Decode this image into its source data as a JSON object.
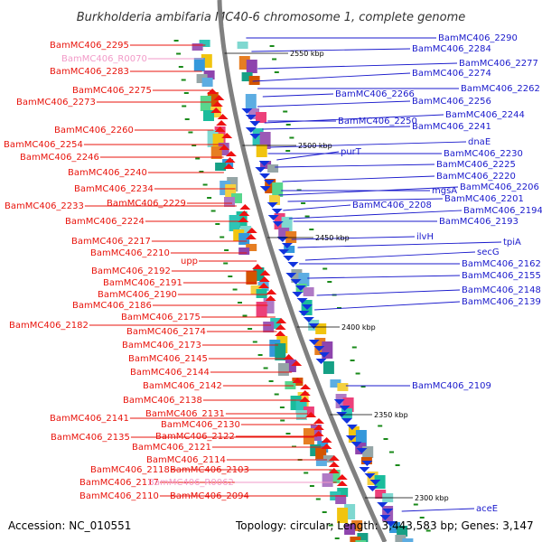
{
  "title": "Burkholderia ambifaria MC40-6 chromosome 1, complete genome",
  "accession": "Accession: NC_010551",
  "topology": "Topology: circular; Length: 3,443,583 bp; Genes: 3,147",
  "colors": {
    "left_label": "#e8140c",
    "right_label": "#1a1acc",
    "rna_label": "#f29ac8",
    "backbone": "#808080",
    "fwd_gene": "#ee1111",
    "rev_gene": "#1133dd",
    "tick": "#1a8a1a"
  },
  "kbp_markers": [
    {
      "text": "2550 kbp"
    },
    {
      "text": "2500 kbp"
    },
    {
      "text": "2450 kbp"
    },
    {
      "text": "2400 kbp"
    },
    {
      "text": "2350 kbp"
    },
    {
      "text": "2300 kbp"
    }
  ],
  "left_labels": [
    {
      "text": "BamMC406_2295",
      "rna": false
    },
    {
      "text": "BamMC406_R0070",
      "rna": true
    },
    {
      "text": "BamMC406_2283",
      "rna": false
    },
    {
      "text": "BamMC406_2275",
      "rna": false
    },
    {
      "text": "BamMC406_2273",
      "rna": false
    },
    {
      "text": "BamMC406_2260",
      "rna": false
    },
    {
      "text": "BamMC406_2254",
      "rna": false
    },
    {
      "text": "BamMC406_2246",
      "rna": false
    },
    {
      "text": "BamMC406_2240",
      "rna": false
    },
    {
      "text": "BamMC406_2234",
      "rna": false
    },
    {
      "text": "BamMC406_2233",
      "rna": false
    },
    {
      "text": "BamMC406_2229",
      "rna": false
    },
    {
      "text": "BamMC406_2224",
      "rna": false
    },
    {
      "text": "BamMC406_2217",
      "rna": false
    },
    {
      "text": "BamMC406_2210",
      "rna": false
    },
    {
      "text": "upp",
      "rna": false
    },
    {
      "text": "BamMC406_2192",
      "rna": false
    },
    {
      "text": "BamMC406_2191",
      "rna": false
    },
    {
      "text": "BamMC406_2190",
      "rna": false
    },
    {
      "text": "BamMC406_2186",
      "rna": false
    },
    {
      "text": "BamMC406_2182",
      "rna": false
    },
    {
      "text": "BamMC406_2175",
      "rna": false
    },
    {
      "text": "BamMC406_2174",
      "rna": false
    },
    {
      "text": "BamMC406_2173",
      "rna": false
    },
    {
      "text": "BamMC406_2145",
      "rna": false
    },
    {
      "text": "BamMC406_2144",
      "rna": false
    },
    {
      "text": "BamMC406_2142",
      "rna": false
    },
    {
      "text": "BamMC406_2138",
      "rna": false
    },
    {
      "text": "BamMC406_2131",
      "rna": false
    },
    {
      "text": "BamMC406_2141",
      "rna": false
    },
    {
      "text": "BamMC406_2130",
      "rna": false
    },
    {
      "text": "BamMC406_2122",
      "rna": false
    },
    {
      "text": "BamMC406_2135",
      "rna": false
    },
    {
      "text": "BamMC406_2121",
      "rna": false
    },
    {
      "text": "BamMC406_2114",
      "rna": false
    },
    {
      "text": "BamMC406_2118",
      "rna": false
    },
    {
      "text": "BamMC406_2103",
      "rna": false
    },
    {
      "text": "BamMC406_2117",
      "rna": false
    },
    {
      "text": "BamMC406_R0062",
      "rna": true
    },
    {
      "text": "BamMC406_2110",
      "rna": false
    },
    {
      "text": "BamMC406_2094",
      "rna": false
    }
  ],
  "right_labels": [
    {
      "text": "BamMC406_2290"
    },
    {
      "text": "BamMC406_2284"
    },
    {
      "text": "BamMC406_2277"
    },
    {
      "text": "BamMC406_2274"
    },
    {
      "text": "BamMC406_2262"
    },
    {
      "text": "BamMC406_2266"
    },
    {
      "text": "BamMC406_2256"
    },
    {
      "text": "BamMC406_2244"
    },
    {
      "text": "BamMC406_2250"
    },
    {
      "text": "BamMC406_2241"
    },
    {
      "text": "dnaE"
    },
    {
      "text": "purT"
    },
    {
      "text": "BamMC406_2230"
    },
    {
      "text": "BamMC406_2225"
    },
    {
      "text": "BamMC406_2220"
    },
    {
      "text": "BamMC406_2206"
    },
    {
      "text": "mgsA"
    },
    {
      "text": "BamMC406_2201"
    },
    {
      "text": "BamMC406_2208"
    },
    {
      "text": "BamMC406_2194"
    },
    {
      "text": "BamMC406_2193"
    },
    {
      "text": "ilvH"
    },
    {
      "text": "tpiA"
    },
    {
      "text": "secG"
    },
    {
      "text": "BamMC406_2162"
    },
    {
      "text": "BamMC406_2155"
    },
    {
      "text": "BamMC406_2148"
    },
    {
      "text": "BamMC406_2139"
    },
    {
      "text": "BamMC406_2109"
    },
    {
      "text": "aceE"
    }
  ]
}
